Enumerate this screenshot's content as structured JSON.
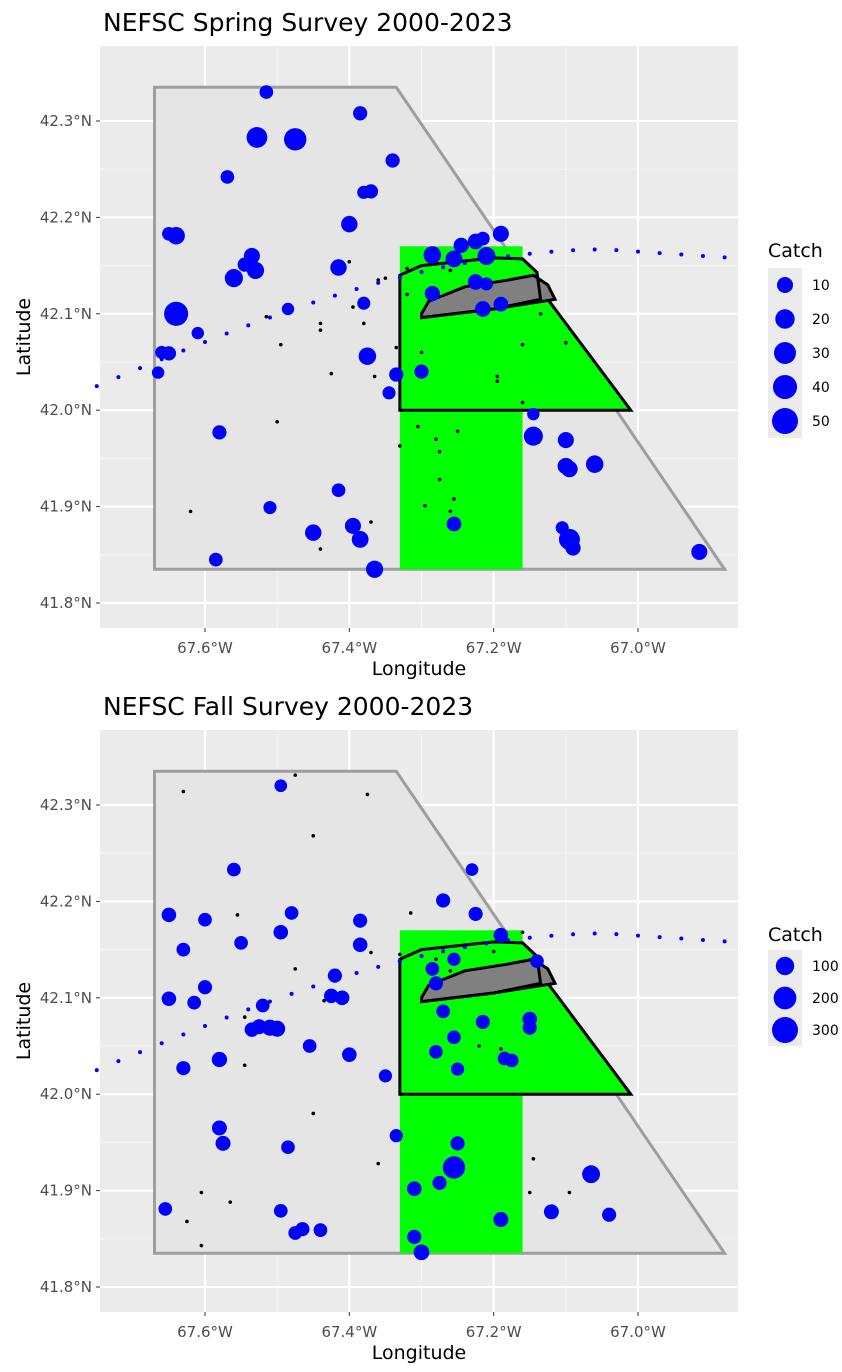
{
  "chart_data": [
    {
      "type": "scatter",
      "title": "NEFSC Spring Survey 2000-2023",
      "xlabel": "Longitude",
      "ylabel": "Latitude",
      "x_ticks": [
        "67.6°W",
        "67.4°W",
        "67.2°W",
        "67.0°W"
      ],
      "y_ticks": [
        "41.8°N",
        "41.9°N",
        "42.0°N",
        "42.1°N",
        "42.2°N",
        "42.3°N"
      ],
      "xlim": [
        -67.75,
        -66.85
      ],
      "ylim": [
        41.775,
        42.35
      ],
      "grid": true,
      "legend": {
        "title": "Catch",
        "position": "right",
        "values": [
          10,
          20,
          30,
          40,
          50
        ]
      },
      "colors": {
        "panel": "#ebebeb",
        "grid": "#ffffff",
        "area_fill": "#e5e5e5",
        "area_stroke": "#9e9e9e",
        "green": "#00ff00",
        "shoal": "#808080",
        "catch": "#0000ff",
        "zero_catch": "#000000"
      },
      "series": [
        {
          "kind": "catch",
          "points": [
            [
              -67.515,
              42.33,
              5
            ],
            [
              -67.385,
              42.308,
              6
            ],
            [
              -67.528,
              42.283,
              25
            ],
            [
              -67.475,
              42.281,
              32
            ],
            [
              -67.34,
              42.259,
              6
            ],
            [
              -67.569,
              42.242,
              5
            ],
            [
              -67.37,
              42.227,
              6
            ],
            [
              -67.38,
              42.226,
              4
            ],
            [
              -67.4,
              42.193,
              11
            ],
            [
              -67.65,
              42.183,
              5
            ],
            [
              -67.64,
              42.181,
              14
            ],
            [
              -67.19,
              42.183,
              10
            ],
            [
              -67.215,
              42.178,
              5
            ],
            [
              -67.225,
              42.175,
              9
            ],
            [
              -67.245,
              42.171,
              8
            ],
            [
              -67.285,
              42.161,
              14
            ],
            [
              -67.255,
              42.157,
              12
            ],
            [
              -67.21,
              42.16,
              15
            ],
            [
              -67.535,
              42.16,
              10
            ],
            [
              -67.545,
              42.151,
              6
            ],
            [
              -67.53,
              42.145,
              13
            ],
            [
              -67.56,
              42.137,
              16
            ],
            [
              -67.415,
              42.148,
              11
            ],
            [
              -67.225,
              42.133,
              9
            ],
            [
              -67.21,
              42.131,
              4
            ],
            [
              -67.285,
              42.121,
              8
            ],
            [
              -67.38,
              42.111,
              4
            ],
            [
              -67.19,
              42.11,
              7
            ],
            [
              -67.215,
              42.105,
              9
            ],
            [
              -67.64,
              42.1,
              40
            ],
            [
              -67.485,
              42.105,
              3
            ],
            [
              -67.61,
              42.08,
              3
            ],
            [
              -67.66,
              42.06,
              4
            ],
            [
              -67.65,
              42.059,
              6
            ],
            [
              -67.665,
              42.039,
              3
            ],
            [
              -67.375,
              42.056,
              14
            ],
            [
              -67.3,
              42.04,
              6
            ],
            [
              -67.335,
              42.037,
              6
            ],
            [
              -67.345,
              42.018,
              4
            ],
            [
              -67.145,
              41.996,
              3
            ],
            [
              -67.145,
              41.973,
              19
            ],
            [
              -67.58,
              41.977,
              6
            ],
            [
              -67.1,
              41.969,
              10
            ],
            [
              -67.1,
              41.942,
              11
            ],
            [
              -67.095,
              41.939,
              11
            ],
            [
              -67.06,
              41.944,
              14
            ],
            [
              -67.415,
              41.917,
              5
            ],
            [
              -67.51,
              41.899,
              4
            ],
            [
              -67.255,
              41.882,
              7
            ],
            [
              -67.395,
              41.88,
              10
            ],
            [
              -67.45,
              41.873,
              11
            ],
            [
              -67.385,
              41.866,
              12
            ],
            [
              -67.105,
              41.878,
              4
            ],
            [
              -67.095,
              41.866,
              26
            ],
            [
              -67.09,
              41.857,
              8
            ],
            [
              -67.585,
              41.845,
              5
            ],
            [
              -66.915,
              41.853,
              10
            ],
            [
              -67.365,
              41.835,
              13
            ]
          ]
        },
        {
          "kind": "zero",
          "points": [
            [
              -67.32,
              42.147
            ],
            [
              -67.26,
              42.145
            ],
            [
              -67.35,
              42.137
            ],
            [
              -67.4,
              42.154
            ],
            [
              -67.36,
              42.135
            ],
            [
              -67.32,
              42.12
            ],
            [
              -67.38,
              42.09
            ],
            [
              -67.395,
              42.107
            ],
            [
              -67.44,
              42.09
            ],
            [
              -67.515,
              42.097
            ],
            [
              -67.44,
              42.083
            ],
            [
              -67.495,
              42.068
            ],
            [
              -67.335,
              42.065
            ],
            [
              -67.3,
              42.06
            ],
            [
              -67.425,
              42.038
            ],
            [
              -67.365,
              42.035
            ],
            [
              -67.195,
              42.035
            ],
            [
              -67.195,
              42.03
            ],
            [
              -67.16,
              42.068
            ],
            [
              -67.135,
              42.1
            ],
            [
              -67.1,
              42.07
            ],
            [
              -67.16,
              42.008
            ],
            [
              -67.5,
              41.988
            ],
            [
              -67.33,
              41.963
            ],
            [
              -67.305,
              41.983
            ],
            [
              -67.28,
              41.97
            ],
            [
              -67.25,
              41.978
            ],
            [
              -67.275,
              41.957
            ],
            [
              -67.275,
              41.928
            ],
            [
              -67.255,
              41.908
            ],
            [
              -67.295,
              41.901
            ],
            [
              -67.26,
              41.895
            ],
            [
              -67.37,
              41.884
            ],
            [
              -67.62,
              41.895
            ],
            [
              -67.44,
              41.856
            ]
          ]
        }
      ]
    },
    {
      "type": "scatter",
      "title": "NEFSC Fall Survey 2000-2023",
      "xlabel": "Longitude",
      "ylabel": "Latitude",
      "x_ticks": [
        "67.6°W",
        "67.4°W",
        "67.2°W",
        "67.0°W"
      ],
      "y_ticks": [
        "41.8°N",
        "41.9°N",
        "42.0°N",
        "42.1°N",
        "42.2°N",
        "42.3°N"
      ],
      "xlim": [
        -67.75,
        -66.85
      ],
      "ylim": [
        41.775,
        42.35
      ],
      "grid": true,
      "legend": {
        "title": "Catch",
        "position": "right",
        "values": [
          100,
          200,
          300
        ]
      },
      "colors": {
        "panel": "#ebebeb",
        "grid": "#ffffff",
        "area_fill": "#e5e5e5",
        "area_stroke": "#9e9e9e",
        "green": "#00ff00",
        "shoal": "#808080",
        "catch": "#0000ff",
        "zero_catch": "#000000"
      },
      "series": [
        {
          "kind": "catch",
          "points": [
            [
              -67.495,
              42.32,
              20
            ],
            [
              -67.56,
              42.233,
              30
            ],
            [
              -67.23,
              42.233,
              20
            ],
            [
              -67.27,
              42.201,
              35
            ],
            [
              -67.65,
              42.186,
              40
            ],
            [
              -67.48,
              42.188,
              30
            ],
            [
              -67.6,
              42.181,
              30
            ],
            [
              -67.385,
              42.18,
              35
            ],
            [
              -67.225,
              42.187,
              35
            ],
            [
              -67.495,
              42.168,
              40
            ],
            [
              -67.63,
              42.15,
              30
            ],
            [
              -67.55,
              42.157,
              30
            ],
            [
              -67.385,
              42.155,
              40
            ],
            [
              -67.19,
              42.165,
              40
            ],
            [
              -67.14,
              42.138,
              30
            ],
            [
              -67.255,
              42.14,
              25
            ],
            [
              -67.285,
              42.13,
              30
            ],
            [
              -67.6,
              42.111,
              35
            ],
            [
              -67.65,
              42.099,
              40
            ],
            [
              -67.615,
              42.095,
              30
            ],
            [
              -67.28,
              42.115,
              35
            ],
            [
              -67.42,
              42.123,
              35
            ],
            [
              -67.425,
              42.102,
              40
            ],
            [
              -67.41,
              42.1,
              40
            ],
            [
              -67.52,
              42.092,
              30
            ],
            [
              -67.525,
              42.07,
              45
            ],
            [
              -67.51,
              42.069,
              60
            ],
            [
              -67.5,
              42.068,
              60
            ],
            [
              -67.535,
              42.067,
              40
            ],
            [
              -67.15,
              42.078,
              40
            ],
            [
              -67.215,
              42.075,
              35
            ],
            [
              -67.15,
              42.069,
              35
            ],
            [
              -67.27,
              42.086,
              30
            ],
            [
              -67.255,
              42.059,
              30
            ],
            [
              -67.185,
              42.037,
              30
            ],
            [
              -67.175,
              42.035,
              30
            ],
            [
              -67.4,
              42.041,
              40
            ],
            [
              -67.28,
              42.044,
              30
            ],
            [
              -67.455,
              42.05,
              30
            ],
            [
              -67.58,
              42.036,
              50
            ],
            [
              -67.63,
              42.027,
              35
            ],
            [
              -67.25,
              42.026,
              25
            ],
            [
              -67.35,
              42.019,
              25
            ],
            [
              -67.58,
              41.965,
              45
            ],
            [
              -67.335,
              41.957,
              25
            ],
            [
              -67.25,
              41.949,
              35
            ],
            [
              -67.575,
              41.949,
              45
            ],
            [
              -67.485,
              41.945,
              30
            ],
            [
              -67.255,
              41.924,
              190
            ],
            [
              -67.065,
              41.917,
              90
            ],
            [
              -67.275,
              41.908,
              35
            ],
            [
              -67.31,
              41.902,
              40
            ],
            [
              -67.12,
              41.878,
              45
            ],
            [
              -67.04,
              41.875,
              35
            ],
            [
              -67.495,
              41.879,
              30
            ],
            [
              -67.655,
              41.881,
              30
            ],
            [
              -67.19,
              41.87,
              45
            ],
            [
              -67.465,
              41.86,
              35
            ],
            [
              -67.475,
              41.856,
              30
            ],
            [
              -67.44,
              41.859,
              30
            ],
            [
              -67.31,
              41.852,
              35
            ],
            [
              -67.3,
              41.836,
              55
            ]
          ]
        },
        {
          "kind": "zero",
          "points": [
            [
              -67.475,
              42.331
            ],
            [
              -67.63,
              42.314
            ],
            [
              -67.375,
              42.311
            ],
            [
              -67.45,
              42.268
            ],
            [
              -67.315,
              42.188
            ],
            [
              -67.555,
              42.186
            ],
            [
              -67.16,
              42.168
            ],
            [
              -67.37,
              42.147
            ],
            [
              -67.33,
              42.145
            ],
            [
              -67.2,
              42.148
            ],
            [
              -67.28,
              42.14
            ],
            [
              -67.26,
              42.128
            ],
            [
              -67.475,
              42.13
            ],
            [
              -67.435,
              42.097
            ],
            [
              -67.545,
              42.08
            ],
            [
              -67.22,
              42.05
            ],
            [
              -67.19,
              42.047
            ],
            [
              -67.545,
              42.03
            ],
            [
              -67.45,
              41.98
            ],
            [
              -67.36,
              41.928
            ],
            [
              -67.145,
              41.933
            ],
            [
              -67.605,
              41.898
            ],
            [
              -67.15,
              41.898
            ],
            [
              -67.095,
              41.898
            ],
            [
              -67.565,
              41.888
            ],
            [
              -67.625,
              41.868
            ],
            [
              -67.605,
              41.843
            ]
          ]
        }
      ]
    }
  ]
}
